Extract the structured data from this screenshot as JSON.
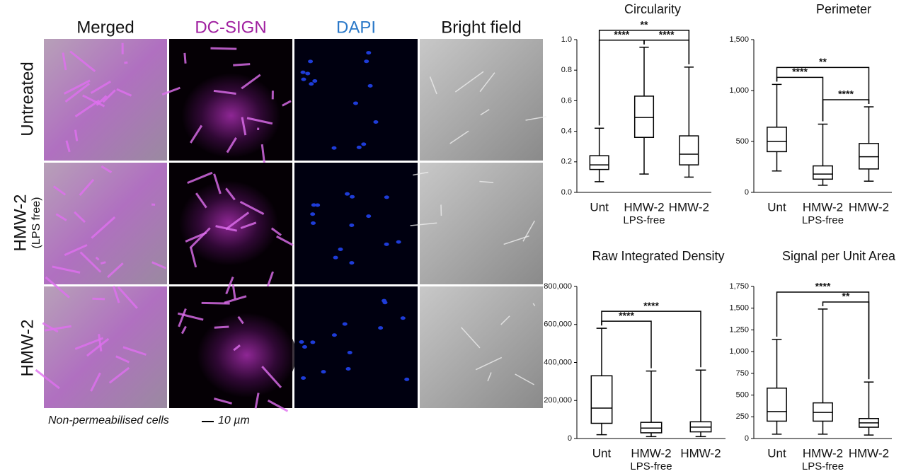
{
  "figure": {
    "columns": [
      "Merged",
      "DC-SIGN",
      "DAPI",
      "Bright field"
    ],
    "rows": [
      "Untreated",
      "HMW-2",
      "HMW-2"
    ],
    "row_note": "(LPS free)",
    "caption": "Non-permeabilised cells",
    "scale_bar": "10 µm"
  },
  "chart_data": [
    {
      "type": "box",
      "title": "Circularity",
      "categories": [
        "Unt",
        "HMW-2",
        "HMW-2"
      ],
      "category_notes": [
        null,
        "LPS-free",
        null
      ],
      "stats": {
        "min": [
          0.07,
          0.12,
          0.1
        ],
        "q1": [
          0.15,
          0.36,
          0.18
        ],
        "median": [
          0.18,
          0.49,
          0.25
        ],
        "q3": [
          0.24,
          0.63,
          0.37
        ],
        "max": [
          0.42,
          0.95,
          0.82
        ]
      },
      "color": "#000000",
      "ylim": [
        0,
        1
      ],
      "yticks": [
        {
          "value": 0,
          "label": "0.0"
        },
        0.2,
        0.4,
        0.6,
        0.8,
        {
          "value": 1,
          "label": "1.0"
        }
      ],
      "comparisons": [
        {
          "pair": [
            0,
            1
          ],
          "label": "****"
        },
        {
          "pair": [
            1,
            2
          ],
          "label": "****"
        },
        {
          "pair": [
            0,
            2
          ],
          "label": "**"
        }
      ]
    },
    {
      "type": "box",
      "title": "Perimeter",
      "categories": [
        "Unt",
        "HMW-2",
        "HMW-2"
      ],
      "category_notes": [
        null,
        "LPS-free",
        null
      ],
      "stats": {
        "min": [
          210,
          70,
          110
        ],
        "q1": [
          400,
          130,
          230
        ],
        "median": [
          500,
          180,
          350
        ],
        "q3": [
          640,
          260,
          480
        ],
        "max": [
          1060,
          670,
          840
        ]
      },
      "color": "#000000",
      "ylim": [
        0,
        1500
      ],
      "yticks": [
        0,
        500,
        {
          "value": 1000,
          "label": "1,000"
        },
        {
          "value": 1500,
          "label": "1,500"
        }
      ],
      "comparisons": [
        {
          "pair": [
            0,
            1
          ],
          "label": "****"
        },
        {
          "pair": [
            1,
            2
          ],
          "label": "****"
        },
        {
          "pair": [
            0,
            2
          ],
          "label": "**"
        }
      ]
    },
    {
      "type": "box",
      "title": "Raw Integrated Density",
      "categories": [
        "Unt",
        "HMW-2",
        "HMW-2"
      ],
      "category_notes": [
        null,
        "LPS-free",
        null
      ],
      "stats": {
        "min": [
          20000,
          10000,
          10000
        ],
        "q1": [
          80000,
          30000,
          35000
        ],
        "median": [
          160000,
          55000,
          60000
        ],
        "q3": [
          330000,
          85000,
          88000
        ],
        "max": [
          580000,
          355000,
          360000
        ]
      },
      "color": "#000000",
      "ylim": [
        0,
        800000
      ],
      "yticks": [
        0,
        {
          "value": 200000,
          "label": "200,000"
        },
        {
          "value": 400000,
          "label": "400,000"
        },
        {
          "value": 600000,
          "label": "600,000"
        },
        {
          "value": 800000,
          "label": "800,000"
        }
      ],
      "comparisons": [
        {
          "pair": [
            0,
            1
          ],
          "label": "****"
        },
        {
          "pair": [
            0,
            2
          ],
          "label": "****"
        }
      ]
    },
    {
      "type": "box",
      "title": "Signal per Unit Area",
      "categories": [
        "Unt",
        "HMW-2",
        "HMW-2"
      ],
      "category_notes": [
        null,
        "LPS-free",
        null
      ],
      "stats": {
        "min": [
          50,
          50,
          40
        ],
        "q1": [
          200,
          200,
          130
        ],
        "median": [
          310,
          300,
          180
        ],
        "q3": [
          580,
          410,
          230
        ],
        "max": [
          1140,
          1490,
          650
        ]
      },
      "color": "#000000",
      "ylim": [
        0,
        1750
      ],
      "yticks": [
        0,
        250,
        500,
        750,
        {
          "value": 1000,
          "label": "1,000"
        },
        {
          "value": 1250,
          "label": "1,250"
        },
        {
          "value": 1500,
          "label": "1,500"
        },
        {
          "value": 1750,
          "label": "1,750"
        }
      ],
      "comparisons": [
        {
          "pair": [
            1,
            2
          ],
          "label": "**"
        },
        {
          "pair": [
            0,
            2
          ],
          "label": "****"
        }
      ]
    }
  ]
}
